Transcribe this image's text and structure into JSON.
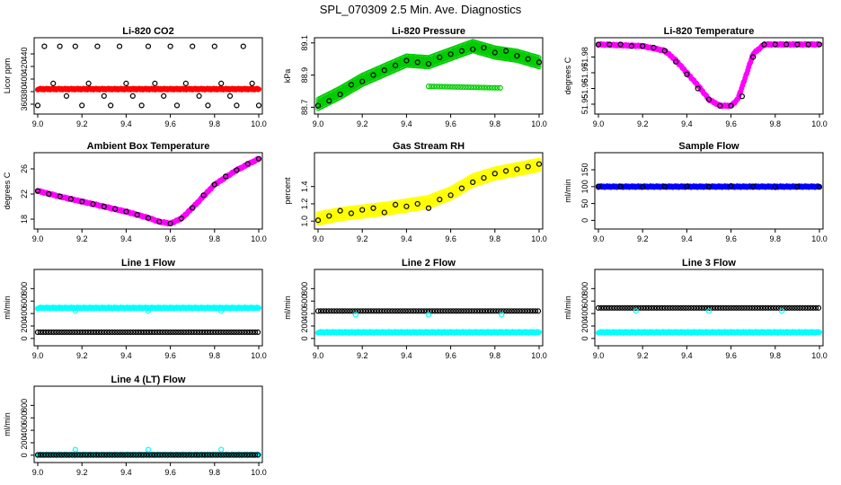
{
  "figure_title": "SPL_070309  2.5 Min. Ave. Diagnostics",
  "colors": {
    "black": "#000000",
    "red": "#ff0000",
    "green": "#00cc00",
    "magenta": "#ff00ff",
    "yellow": "#ffff00",
    "blue": "#0000ff",
    "cyan": "#00ffff"
  },
  "chart_data": [
    {
      "type": "scatter",
      "title": "Li-820 CO2",
      "ylabel": "Licor ppm",
      "xlim": [
        9.0,
        10.0
      ],
      "ylim": [
        350,
        460
      ],
      "xticks": [
        "9.0",
        "9.2",
        "9.4",
        "9.6",
        "9.8",
        "10.0"
      ],
      "yticks": [
        "360",
        "380",
        "400",
        "420",
        "440"
      ],
      "series": [
        {
          "name": "dense",
          "color": "red",
          "style": "dense",
          "x": [
            9.0,
            10.0
          ],
          "y": [
            384,
            384
          ]
        },
        {
          "name": "points",
          "color": "black",
          "style": "open",
          "x": [
            9.0,
            9.03,
            9.07,
            9.1,
            9.13,
            9.17,
            9.2,
            9.23,
            9.27,
            9.3,
            9.33,
            9.37,
            9.4,
            9.43,
            9.47,
            9.5,
            9.53,
            9.57,
            9.6,
            9.63,
            9.67,
            9.7,
            9.73,
            9.77,
            9.8,
            9.83,
            9.87,
            9.9,
            9.93,
            9.97,
            10.0
          ],
          "y": [
            358,
            452,
            393,
            452,
            373,
            452,
            358,
            393,
            452,
            373,
            358,
            452,
            393,
            373,
            358,
            452,
            393,
            373,
            452,
            358,
            393,
            452,
            373,
            358,
            452,
            393,
            373,
            358,
            452,
            393,
            358
          ]
        }
      ]
    },
    {
      "type": "scatter",
      "title": "Li-820 Pressure",
      "ylabel": "kPa",
      "xlim": [
        9.0,
        10.0
      ],
      "ylim": [
        88.68,
        89.11
      ],
      "xticks": [
        "9.0",
        "9.2",
        "9.4",
        "9.6",
        "9.8",
        "10.0"
      ],
      "yticks": [
        "88.7",
        "88.9",
        "89.1"
      ],
      "series": [
        {
          "name": "band",
          "color": "green",
          "style": "band",
          "x": [
            9.0,
            9.1,
            9.2,
            9.3,
            9.4,
            9.5,
            9.6,
            9.7,
            9.75,
            9.8,
            9.9,
            10.0
          ],
          "y": [
            88.72,
            88.79,
            88.87,
            88.93,
            88.99,
            88.98,
            89.03,
            89.08,
            89.06,
            89.04,
            89.02,
            88.98
          ]
        },
        {
          "name": "points",
          "color": "black",
          "style": "open",
          "x": [
            9.0,
            9.05,
            9.1,
            9.15,
            9.2,
            9.25,
            9.3,
            9.35,
            9.4,
            9.45,
            9.5,
            9.55,
            9.6,
            9.65,
            9.7,
            9.75,
            9.8,
            9.85,
            9.9,
            9.95,
            10.0
          ],
          "y": [
            88.71,
            88.74,
            88.78,
            88.84,
            88.86,
            88.9,
            88.93,
            88.96,
            88.99,
            88.98,
            88.97,
            89.01,
            89.03,
            89.05,
            89.06,
            89.07,
            89.04,
            89.05,
            89.02,
            89.0,
            88.98
          ]
        },
        {
          "name": "outliers",
          "color": "green",
          "style": "open",
          "x": [
            9.5,
            9.83
          ],
          "y": [
            88.83,
            88.82
          ]
        }
      ]
    },
    {
      "type": "scatter",
      "title": "Li-820 Temperature",
      "ylabel": "degrees C",
      "xlim": [
        9.0,
        10.0
      ],
      "ylim": [
        51.946,
        51.99
      ],
      "xticks": [
        "9.0",
        "9.2",
        "9.4",
        "9.6",
        "9.8",
        "10.0"
      ],
      "yticks": [
        "51.95",
        "51.96",
        "51.97",
        "51.98"
      ],
      "series": [
        {
          "name": "dense",
          "color": "magenta",
          "style": "dense",
          "x": [
            9.0,
            9.2,
            9.3,
            9.35,
            9.4,
            9.45,
            9.5,
            9.55,
            9.6,
            9.63,
            9.66,
            9.7,
            9.75,
            9.8,
            10.0
          ],
          "y": [
            51.988,
            51.987,
            51.984,
            51.978,
            51.97,
            51.962,
            51.953,
            51.949,
            51.949,
            51.953,
            51.965,
            51.982,
            51.988,
            51.988,
            51.988
          ]
        },
        {
          "name": "points",
          "color": "black",
          "style": "open",
          "x": [
            9.0,
            9.05,
            9.1,
            9.15,
            9.2,
            9.25,
            9.3,
            9.35,
            9.4,
            9.45,
            9.5,
            9.55,
            9.6,
            9.65,
            9.7,
            9.75,
            9.8,
            9.85,
            9.9,
            9.95,
            10.0
          ],
          "y": [
            51.988,
            51.988,
            51.988,
            51.987,
            51.987,
            51.986,
            51.984,
            51.977,
            51.969,
            51.96,
            51.953,
            51.949,
            51.949,
            51.955,
            51.98,
            51.988,
            51.988,
            51.988,
            51.988,
            51.988,
            51.988
          ]
        }
      ]
    },
    {
      "type": "scatter",
      "title": "Ambient Box Temperature",
      "ylabel": "degrees C",
      "xlim": [
        9.0,
        10.0
      ],
      "ylim": [
        17.0,
        28.0
      ],
      "xticks": [
        "9.0",
        "9.2",
        "9.4",
        "9.6",
        "9.8",
        "10.0"
      ],
      "yticks": [
        "18",
        "22",
        "26"
      ],
      "series": [
        {
          "name": "dense",
          "color": "magenta",
          "style": "dense",
          "x": [
            9.0,
            9.1,
            9.2,
            9.3,
            9.4,
            9.5,
            9.55,
            9.6,
            9.65,
            9.7,
            9.8,
            9.9,
            10.0
          ],
          "y": [
            22.5,
            21.6,
            20.8,
            20.0,
            19.2,
            18.2,
            17.6,
            17.3,
            18.1,
            19.8,
            23.5,
            25.8,
            27.6
          ]
        },
        {
          "name": "points",
          "color": "black",
          "style": "open",
          "x": [
            9.0,
            9.05,
            9.1,
            9.15,
            9.2,
            9.25,
            9.3,
            9.35,
            9.4,
            9.45,
            9.5,
            9.55,
            9.6,
            9.65,
            9.7,
            9.75,
            9.8,
            9.85,
            9.9,
            9.95,
            10.0
          ],
          "y": [
            22.5,
            22.0,
            21.6,
            21.2,
            20.8,
            20.4,
            20.0,
            19.6,
            19.2,
            18.7,
            18.2,
            17.6,
            17.3,
            18.1,
            19.8,
            21.8,
            23.5,
            24.8,
            25.8,
            26.8,
            27.6
          ]
        }
      ]
    },
    {
      "type": "scatter",
      "title": "Gas Stream RH",
      "ylabel": "percent",
      "xlim": [
        9.0,
        10.0
      ],
      "ylim": [
        0.95,
        1.75
      ],
      "xticks": [
        "9.0",
        "9.2",
        "9.4",
        "9.6",
        "9.8",
        "10.0"
      ],
      "yticks": [
        "1.0",
        "1.2",
        "1.4"
      ],
      "series": [
        {
          "name": "band",
          "color": "yellow",
          "style": "band",
          "x": [
            9.0,
            9.1,
            9.2,
            9.3,
            9.4,
            9.5,
            9.6,
            9.7,
            9.8,
            9.9,
            10.0
          ],
          "y": [
            1.03,
            1.08,
            1.11,
            1.14,
            1.18,
            1.22,
            1.32,
            1.47,
            1.55,
            1.6,
            1.65
          ]
        },
        {
          "name": "points",
          "color": "black",
          "style": "open",
          "x": [
            9.0,
            9.05,
            9.1,
            9.15,
            9.2,
            9.25,
            9.3,
            9.35,
            9.4,
            9.45,
            9.5,
            9.55,
            9.6,
            9.65,
            9.7,
            9.75,
            9.8,
            9.85,
            9.9,
            9.95,
            10.0
          ],
          "y": [
            1.01,
            1.06,
            1.12,
            1.09,
            1.13,
            1.15,
            1.1,
            1.19,
            1.17,
            1.2,
            1.15,
            1.25,
            1.3,
            1.38,
            1.45,
            1.5,
            1.55,
            1.58,
            1.6,
            1.63,
            1.66
          ]
        }
      ]
    },
    {
      "type": "scatter",
      "title": "Sample Flow",
      "ylabel": "ml/min",
      "xlim": [
        9.0,
        10.0
      ],
      "ylim": [
        -15,
        190
      ],
      "xticks": [
        "9.0",
        "9.2",
        "9.4",
        "9.6",
        "9.8",
        "10.0"
      ],
      "yticks": [
        "0",
        "50",
        "100",
        "150"
      ],
      "series": [
        {
          "name": "dense",
          "color": "blue",
          "style": "dense",
          "x": [
            9.0,
            10.0
          ],
          "y": [
            100,
            100
          ]
        },
        {
          "name": "points",
          "color": "black",
          "style": "open",
          "x": [
            9.0,
            9.1,
            9.2,
            9.3,
            9.4,
            9.5,
            9.6,
            9.7,
            9.8,
            9.9,
            10.0
          ],
          "y": [
            101,
            100,
            99,
            100,
            101,
            100,
            102,
            101,
            98,
            100,
            99
          ]
        }
      ]
    },
    {
      "type": "scatter",
      "title": "Line 1 Flow",
      "ylabel": "ml/min",
      "xlim": [
        9.0,
        10.0
      ],
      "ylim": [
        -60,
        1050
      ],
      "xticks": [
        "9.0",
        "9.2",
        "9.4",
        "9.6",
        "9.8",
        "10.0"
      ],
      "yticks": [
        "0",
        "200",
        "400",
        "600",
        "800"
      ],
      "series": [
        {
          "name": "high",
          "color": "cyan",
          "style": "dense",
          "x": [
            9.0,
            10.0
          ],
          "y": [
            490,
            490
          ]
        },
        {
          "name": "low",
          "color": "black",
          "style": "open",
          "x": [
            9.0,
            10.0
          ],
          "y": [
            100,
            100
          ]
        },
        {
          "name": "markers",
          "color": "cyan",
          "style": "open",
          "x": [
            9.17,
            9.5,
            9.83
          ],
          "y": [
            440,
            440,
            440
          ]
        }
      ]
    },
    {
      "type": "scatter",
      "title": "Line 2 Flow",
      "ylabel": "ml/min",
      "xlim": [
        9.0,
        10.0
      ],
      "ylim": [
        -60,
        1050
      ],
      "xticks": [
        "9.0",
        "9.2",
        "9.4",
        "9.6",
        "9.8",
        "10.0"
      ],
      "yticks": [
        "0",
        "200",
        "400",
        "600",
        "800"
      ],
      "series": [
        {
          "name": "low",
          "color": "cyan",
          "style": "dense",
          "x": [
            9.0,
            10.0
          ],
          "y": [
            100,
            100
          ]
        },
        {
          "name": "high",
          "color": "black",
          "style": "open",
          "x": [
            9.0,
            10.0
          ],
          "y": [
            440,
            440
          ]
        },
        {
          "name": "markers",
          "color": "cyan",
          "style": "open",
          "x": [
            9.17,
            9.5,
            9.83
          ],
          "y": [
            380,
            380,
            380
          ]
        }
      ]
    },
    {
      "type": "scatter",
      "title": "Line 3 Flow",
      "ylabel": "ml/min",
      "xlim": [
        9.0,
        10.0
      ],
      "ylim": [
        -60,
        1050
      ],
      "xticks": [
        "9.0",
        "9.2",
        "9.4",
        "9.6",
        "9.8",
        "10.0"
      ],
      "yticks": [
        "0",
        "200",
        "400",
        "600",
        "800"
      ],
      "series": [
        {
          "name": "low",
          "color": "cyan",
          "style": "dense",
          "x": [
            9.0,
            10.0
          ],
          "y": [
            100,
            100
          ]
        },
        {
          "name": "high",
          "color": "black",
          "style": "open",
          "x": [
            9.0,
            10.0
          ],
          "y": [
            490,
            490
          ]
        },
        {
          "name": "markers",
          "color": "cyan",
          "style": "open",
          "x": [
            9.17,
            9.5,
            9.83
          ],
          "y": [
            440,
            440,
            440
          ]
        }
      ]
    },
    {
      "type": "scatter",
      "title": "Line 4 (LT) Flow",
      "ylabel": "ml/min",
      "xlim": [
        9.0,
        10.0
      ],
      "ylim": [
        -60,
        1050
      ],
      "xticks": [
        "9.0",
        "9.2",
        "9.4",
        "9.6",
        "9.8",
        "10.0"
      ],
      "yticks": [
        "0",
        "200",
        "400",
        "600",
        "800"
      ],
      "series": [
        {
          "name": "base",
          "color": "cyan",
          "style": "dense",
          "x": [
            9.0,
            10.0
          ],
          "y": [
            5,
            5
          ]
        },
        {
          "name": "points",
          "color": "black",
          "style": "open",
          "x": [
            9.0,
            10.0
          ],
          "y": [
            5,
            5
          ]
        },
        {
          "name": "markers",
          "color": "cyan",
          "style": "open",
          "x": [
            9.17,
            9.5,
            9.83
          ],
          "y": [
            90,
            90,
            90
          ]
        }
      ]
    }
  ]
}
